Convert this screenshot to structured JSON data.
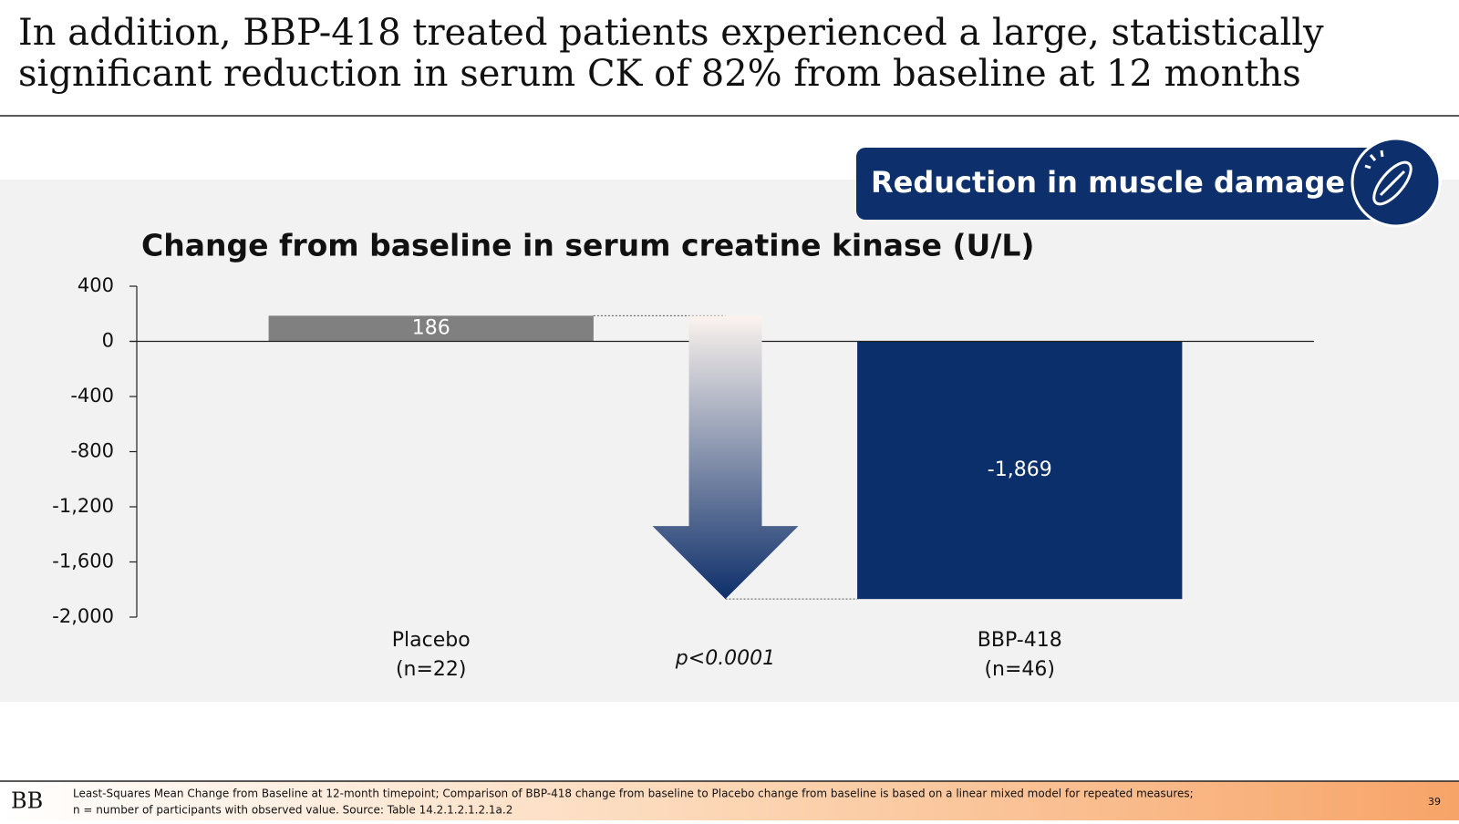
{
  "slide_title": [
    "In addition, BBP-418 treated patients experienced a large, statistically",
    "significant reduction in serum CK of 82% from baseline at 12 months"
  ],
  "banner": "Reduction in muscle damage",
  "logo": "BB",
  "footnote": [
    "Least-Squares Mean Change from Baseline at 12-month timepoint; Comparison of BBP-418 change from baseline to Placebo change from baseline is based on a linear mixed model for repeated measures;",
    "n = number of participants with observed value. Source: Table 14.2.1.2.1.2.1a.2"
  ],
  "page_number": "39",
  "chart_data": {
    "type": "bar",
    "title": "Change from baseline in serum creatine kinase (U/L)",
    "categories": [
      [
        "Placebo",
        "(n=22)"
      ],
      [
        "BBP-418",
        "(n=46)"
      ]
    ],
    "values": [
      186,
      -1869
    ],
    "value_labels": [
      "186",
      "-1,869"
    ],
    "colors": [
      "#808080",
      "#0a2f6b"
    ],
    "annotation": "p<0.0001",
    "ylim": [
      -2000,
      400
    ],
    "yticks": [
      {
        "value": -2000,
        "label": "-2,000"
      },
      {
        "value": -1600,
        "label": "-1,600"
      },
      {
        "value": -1200,
        "label": "-1,200"
      },
      -800,
      -400,
      0,
      400
    ]
  }
}
